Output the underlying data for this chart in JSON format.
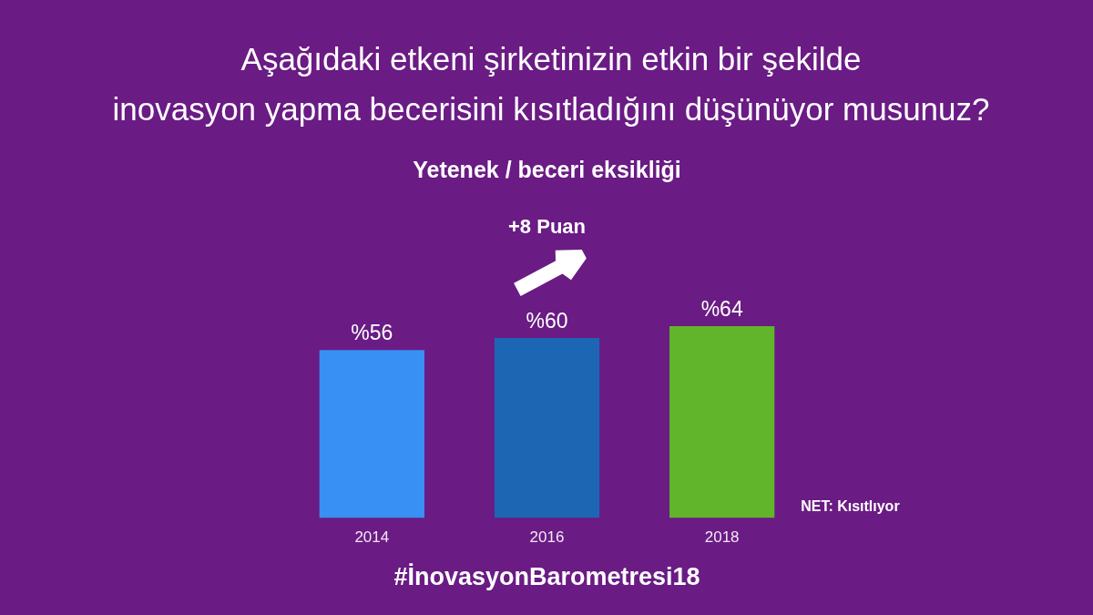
{
  "chart_data": {
    "type": "bar",
    "title": "Aşağıdaki etkeni şirketinizin etkin bir şekilde\ninovasyon yapma becerisini kısıtladığını düşünüyor musunuz?",
    "subtitle": "Yetenek / beceri eksikliği",
    "categories": [
      "2014",
      "2016",
      "2018"
    ],
    "values": [
      56,
      60,
      64
    ],
    "colors": [
      "#3890f5",
      "#1d66b4",
      "#61b52a"
    ],
    "value_labels": [
      "%56",
      "%60",
      "%64"
    ],
    "annotations": [
      "+8 Puan",
      "NET: Kısıtlıyor",
      "#İnovasyonBarometresi18"
    ],
    "tick_labels": "x"
  }
}
